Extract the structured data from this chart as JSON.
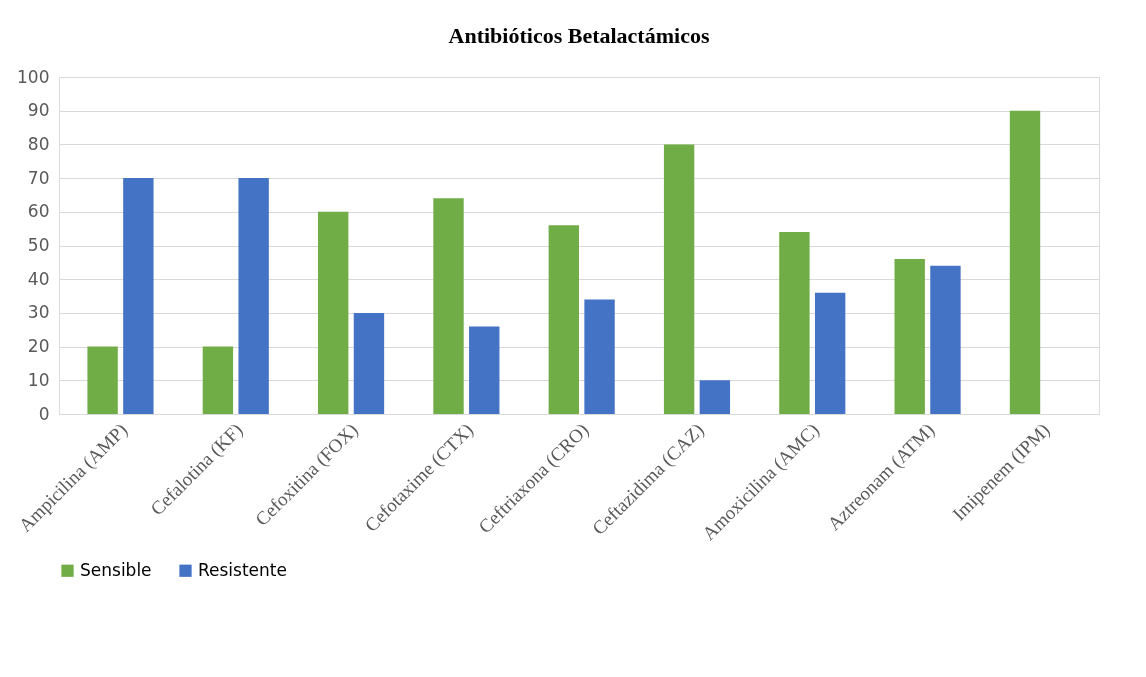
{
  "chart_data": {
    "type": "bar",
    "title": "Antibióticos Betalactámicos",
    "categories": [
      "Ampicilina (AMP)",
      "Cefalotina (KF)",
      "Cefoxitina (FOX)",
      "Cefotaxime (CTX)",
      "Ceftriaxona (CRO)",
      "Ceftazidima (CAZ)",
      "Amoxicilina (AMC)",
      "Aztreonam (ATM)",
      "Imipenem (IPM)"
    ],
    "series": [
      {
        "name": "Sensible",
        "color": "#70ad47",
        "values": [
          20,
          20,
          60,
          64,
          56,
          80,
          54,
          46,
          90
        ]
      },
      {
        "name": "Resistente",
        "color": "#4472c4",
        "values": [
          70,
          70,
          30,
          26,
          34,
          10,
          36,
          44,
          0
        ]
      }
    ],
    "ylim": [
      0,
      100
    ],
    "yticks": [
      0,
      10,
      20,
      30,
      40,
      50,
      60,
      70,
      80,
      90,
      100
    ],
    "grid": "y",
    "legend": "bottom"
  }
}
